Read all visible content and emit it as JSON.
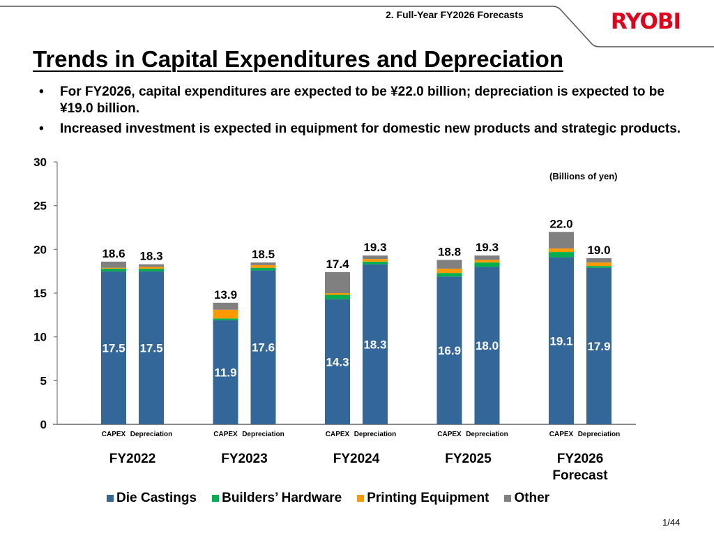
{
  "header": {
    "section": "2. Full-Year FY2026 Forecasts",
    "logo": "RYOBI"
  },
  "title": "Trends in Capital Expenditures and Depreciation",
  "bullets": [
    {
      "dot": "•",
      "text": "For FY2026, capital expenditures are expected to be ¥22.0 billion; depreciation is expected to be ¥19.0 billion."
    },
    {
      "dot": "•",
      "text": "Increased investment is expected in equipment for domestic new products and strategic products."
    }
  ],
  "page_number": "1/44",
  "chart_data": {
    "type": "bar",
    "stacked": true,
    "unit_label": "(Billions of yen)",
    "ylim": [
      0,
      30
    ],
    "yticks": [
      0,
      5,
      10,
      15,
      20,
      25,
      30
    ],
    "groups": [
      "FY2022",
      "FY2023",
      "FY2024",
      "FY2025",
      "FY2026 Forecast"
    ],
    "group_labels": [
      [
        "FY2022"
      ],
      [
        "FY2023"
      ],
      [
        "FY2024"
      ],
      [
        "FY2025"
      ],
      [
        "FY2026",
        "Forecast"
      ]
    ],
    "bar_labels": [
      "CAPEX",
      "Depreciation"
    ],
    "categories": [
      "FY2022 CAPEX",
      "FY2022 Depreciation",
      "FY2023 CAPEX",
      "FY2023 Depreciation",
      "FY2024 CAPEX",
      "FY2024 Depreciation",
      "FY2025 CAPEX",
      "FY2025 Depreciation",
      "FY2026 CAPEX",
      "FY2026 Depreciation"
    ],
    "series": [
      {
        "name": "Die Castings",
        "color": "#336699",
        "values": [
          17.5,
          17.5,
          11.9,
          17.6,
          14.3,
          18.3,
          16.9,
          18.0,
          19.1,
          17.9
        ],
        "labeled": true
      },
      {
        "name": "Builders’ Hardware",
        "color": "#00b050",
        "values": [
          0.3,
          0.3,
          0.2,
          0.3,
          0.5,
          0.3,
          0.4,
          0.5,
          0.6,
          0.2
        ]
      },
      {
        "name": "Printing Equipment",
        "color": "#ff9900",
        "values": [
          0.1,
          0.2,
          1.0,
          0.3,
          0.2,
          0.3,
          0.5,
          0.3,
          0.4,
          0.4
        ]
      },
      {
        "name": "Other",
        "color": "#808080",
        "values": [
          0.7,
          0.3,
          0.8,
          0.3,
          2.4,
          0.4,
          1.0,
          0.5,
          1.9,
          0.5
        ]
      }
    ],
    "totals": [
      "18.6",
      "18.3",
      "13.9",
      "18.5",
      "17.4",
      "19.3",
      "18.8",
      "19.3",
      "22.0",
      "19.0"
    ],
    "die_labels": [
      "17.5",
      "17.5",
      "11.9",
      "17.6",
      "14.3",
      "18.3",
      "16.9",
      "18.0",
      "19.1",
      "17.9"
    ],
    "legend_position": "bottom",
    "grid": false
  }
}
